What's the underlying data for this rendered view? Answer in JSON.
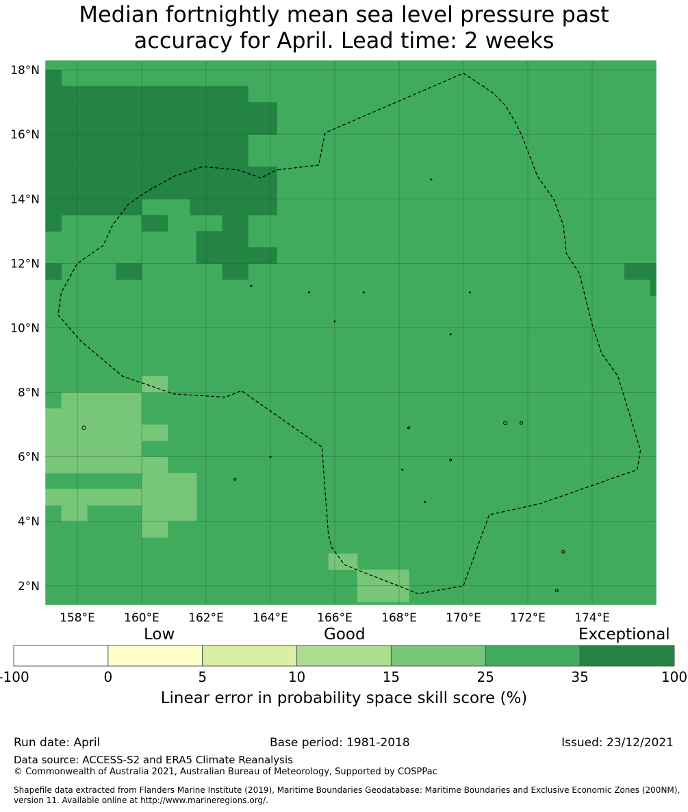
{
  "title": {
    "line1": "Median fortnightly mean sea level pressure past",
    "line2": "accuracy for April. Lead time: 2 weeks"
  },
  "map": {
    "lon_range": [
      157.0,
      176.0
    ],
    "lat_range": [
      1.4,
      18.3
    ],
    "grid": true,
    "x_tick_labels": [
      "158°E",
      "160°E",
      "162°E",
      "164°E",
      "166°E",
      "168°E",
      "170°E",
      "172°E",
      "174°E"
    ],
    "y_tick_labels": [
      "18°N",
      "16°N",
      "14°N",
      "12°N",
      "10°N",
      "8°N",
      "6°N",
      "4°N",
      "2°N"
    ],
    "background_category": "25-35",
    "colors": {
      "25-35": "#41ab5d",
      "35-100": "#238443",
      "15-25": "#78c679",
      "boundary": "#000000"
    },
    "boundary_style": "dashed",
    "cell_groups": [
      {
        "category": "35-100",
        "color": "#238443",
        "cells": [
          [
            157,
            17.5,
            157.5,
            18
          ],
          [
            157,
            17,
            163.3,
            17.5
          ],
          [
            157,
            16,
            164.2,
            17
          ],
          [
            157,
            15,
            163.3,
            16
          ],
          [
            157,
            14,
            164.2,
            15
          ],
          [
            157,
            13.5,
            160,
            14
          ],
          [
            161.5,
            13.5,
            164.2,
            14
          ],
          [
            157,
            13,
            157.5,
            13.5
          ],
          [
            160,
            13,
            160.8,
            13.5
          ],
          [
            162.5,
            13,
            163.3,
            13.5
          ],
          [
            161.7,
            12.5,
            163.3,
            13
          ],
          [
            161.7,
            12,
            164.2,
            12.5
          ],
          [
            157,
            11.5,
            157.5,
            12
          ],
          [
            159.2,
            11.5,
            160,
            12
          ],
          [
            162.5,
            11.5,
            163.3,
            12
          ],
          [
            175,
            11.5,
            176,
            12
          ],
          [
            175.8,
            11,
            176,
            11.5
          ]
        ]
      },
      {
        "category": "15-25",
        "color": "#78c679",
        "cells": [
          [
            160,
            8,
            160.8,
            8.5
          ],
          [
            157.5,
            7.5,
            160,
            8
          ],
          [
            157,
            6.5,
            160,
            7.5
          ],
          [
            160,
            6.5,
            160.8,
            7
          ],
          [
            157,
            5.5,
            160,
            6.5
          ],
          [
            160,
            5.5,
            160.8,
            6
          ],
          [
            160,
            5,
            161.7,
            5.5
          ],
          [
            157,
            4.5,
            160,
            5
          ],
          [
            160,
            4.5,
            161.7,
            5
          ],
          [
            157.5,
            4,
            158.3,
            4.5
          ],
          [
            160,
            4,
            161.7,
            4.5
          ],
          [
            160,
            3.5,
            160.8,
            4
          ],
          [
            165.8,
            2.5,
            166.7,
            3
          ],
          [
            166.7,
            2,
            168.3,
            2.5
          ],
          [
            166.7,
            1.5,
            168.3,
            2
          ]
        ]
      }
    ],
    "eez_boundary": [
      [
        170,
        17.9
      ],
      [
        170.3,
        17.7
      ],
      [
        170.9,
        17.3
      ],
      [
        171.3,
        16.9
      ],
      [
        171.6,
        16.4
      ],
      [
        171.8,
        16
      ],
      [
        172.3,
        14.7
      ],
      [
        172.8,
        14
      ],
      [
        173.1,
        13.2
      ],
      [
        173.2,
        12.3
      ],
      [
        173.6,
        11.7
      ],
      [
        174,
        10.1
      ],
      [
        174.3,
        9.2
      ],
      [
        174.8,
        8.5
      ],
      [
        175.2,
        7.2
      ],
      [
        175.5,
        6.2
      ],
      [
        175.4,
        5.6
      ],
      [
        172.4,
        4.55
      ],
      [
        170.8,
        4.2
      ],
      [
        170,
        2
      ],
      [
        168.6,
        1.75
      ],
      [
        166.3,
        2.65
      ],
      [
        165.9,
        3.2
      ],
      [
        165.8,
        3.6
      ],
      [
        165.6,
        6.3
      ],
      [
        163.1,
        8.05
      ],
      [
        162.6,
        7.85
      ],
      [
        161,
        7.95
      ],
      [
        159.4,
        8.5
      ],
      [
        158.1,
        9.6
      ],
      [
        157.4,
        10.4
      ],
      [
        157.5,
        11.1
      ],
      [
        158,
        12
      ],
      [
        158.8,
        12.55
      ],
      [
        159.1,
        13.2
      ],
      [
        159.6,
        13.85
      ],
      [
        160.2,
        14.25
      ],
      [
        161,
        14.7
      ],
      [
        161.9,
        15
      ],
      [
        163,
        14.9
      ],
      [
        163.7,
        14.65
      ],
      [
        164.2,
        14.9
      ],
      [
        165.5,
        15.05
      ],
      [
        165.7,
        16.05
      ],
      [
        170,
        17.9
      ]
    ],
    "islands": [
      [
        158.2,
        6.9,
        5
      ],
      [
        162.9,
        5.3,
        3
      ],
      [
        169.6,
        5.9,
        3
      ],
      [
        171.3,
        7.05,
        5
      ],
      [
        171.8,
        7.05,
        4
      ],
      [
        173.1,
        3.05,
        4
      ],
      [
        172.9,
        1.85,
        4
      ],
      [
        169.0,
        14.6,
        2
      ],
      [
        165.2,
        11.1,
        2
      ],
      [
        163.4,
        11.3,
        2
      ],
      [
        166.9,
        11.1,
        2
      ],
      [
        169.6,
        9.8,
        2
      ],
      [
        168.3,
        6.9,
        3
      ],
      [
        168.8,
        4.6,
        2
      ],
      [
        168.1,
        5.6,
        2
      ],
      [
        166.0,
        10.2,
        2
      ],
      [
        164.0,
        6.0,
        2
      ],
      [
        170.2,
        11.1,
        2
      ]
    ]
  },
  "colorbar": {
    "category_labels": {
      "low": "Low",
      "good": "Good",
      "exceptional": "Exceptional"
    },
    "bins": [
      {
        "from": "-100",
        "to": "0",
        "color": "#ffffff"
      },
      {
        "from": "0",
        "to": "5",
        "color": "#ffffcc"
      },
      {
        "from": "5",
        "to": "10",
        "color": "#d9f0a3"
      },
      {
        "from": "10",
        "to": "15",
        "color": "#addd8e"
      },
      {
        "from": "15",
        "to": "25",
        "color": "#78c679"
      },
      {
        "from": "25",
        "to": "35",
        "color": "#41ab5d"
      },
      {
        "from": "35",
        "to": "100",
        "color": "#238443"
      }
    ],
    "tick_labels": [
      "-100",
      "0",
      "5",
      "10",
      "15",
      "25",
      "35",
      "100"
    ],
    "axis_label": "Linear error in probability space skill score (%)"
  },
  "footer": {
    "run_date": "Run date: April",
    "base_period": "Base period: 1981-2018",
    "issued": "Issued: 23/12/2021",
    "data_source": "Data source: ACCESS-S2 and ERA5 Climate Reanalysis",
    "copyright": "© Commonwealth of Australia 2021, Australian Bureau of Meteorology, Supported by COSPPac",
    "shapefile": "Shapefile data extracted from Flanders Marine Institute (2019), Maritime Boundaries Geodatabase: Maritime Boundaries and Exclusive Economic Zones (200NM), version 11. Available online at http://www.marineregions.org/."
  }
}
